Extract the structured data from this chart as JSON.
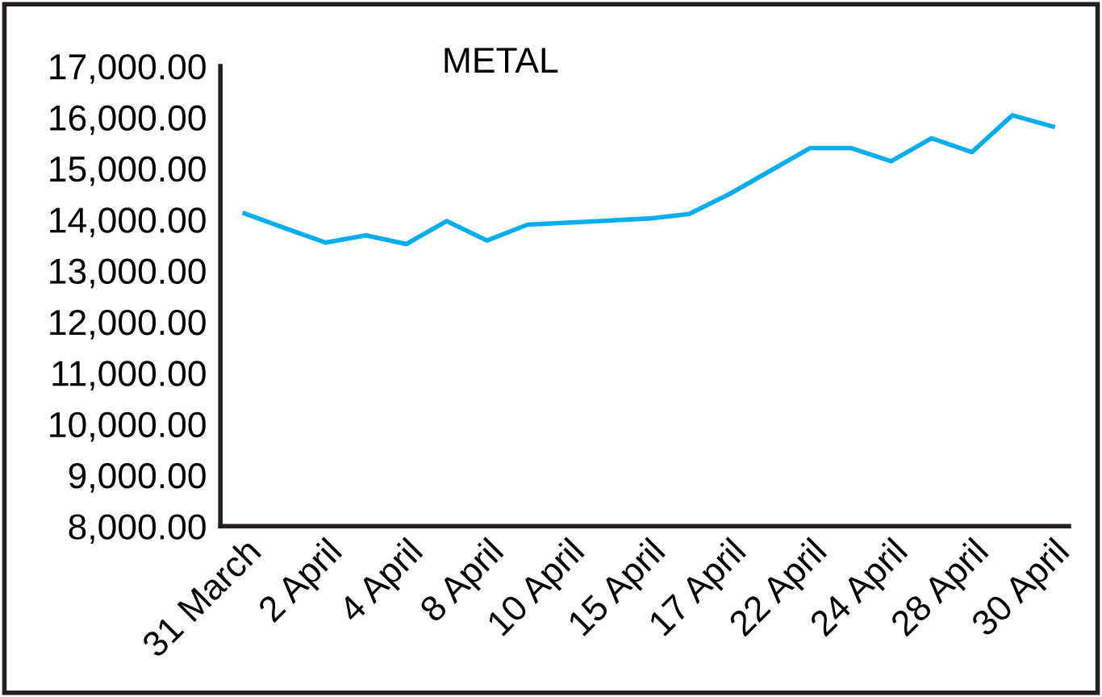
{
  "chart_data": {
    "type": "line",
    "title": "METAL",
    "categories": [
      "31 March",
      null,
      "2 April",
      null,
      "4 April",
      null,
      "8 April",
      null,
      "10 April",
      null,
      "15 April",
      null,
      "17 April",
      null,
      "22 April",
      null,
      "24 April",
      null,
      "28 April",
      null,
      "30 April"
    ],
    "series": [
      {
        "color": "#00aeef",
        "values": [
          14120,
          13830,
          13550,
          13690,
          13520,
          13970,
          13590,
          13900,
          13940,
          13980,
          14020,
          14110,
          14500,
          14950,
          15400,
          15400,
          15140,
          15590,
          15320,
          16040,
          15820
        ]
      }
    ],
    "ylim": [
      8000,
      17000
    ],
    "yticks": [
      {
        "value": 8000,
        "label": "8,000.00"
      },
      {
        "value": 9000,
        "label": "9,000.00"
      },
      {
        "value": 10000,
        "label": "10,000.00"
      },
      {
        "value": 11000,
        "label": "11,000.00"
      },
      {
        "value": 12000,
        "label": "12,000.00"
      },
      {
        "value": 13000,
        "label": "13,000.00"
      },
      {
        "value": 14000,
        "label": "14,000.00"
      },
      {
        "value": 15000,
        "label": "15,000.00"
      },
      {
        "value": 16000,
        "label": "16,000.00"
      },
      {
        "value": 17000,
        "label": "17,000.00"
      }
    ],
    "grid": false,
    "legend": false,
    "marker": "none",
    "line_style": "solid"
  }
}
